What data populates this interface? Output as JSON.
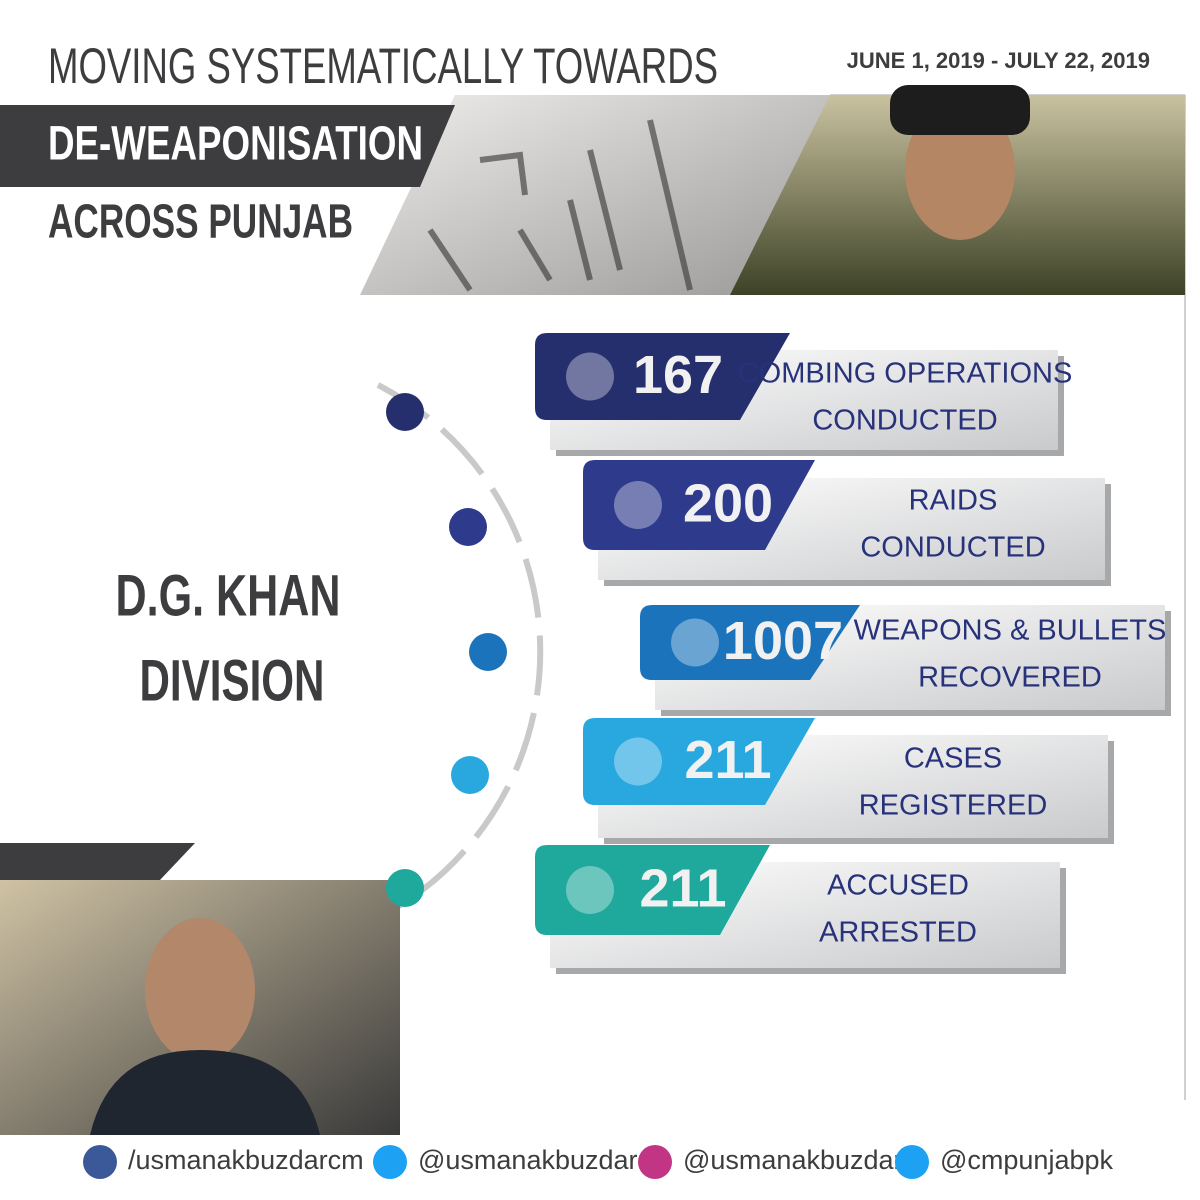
{
  "header": {
    "title_line_1": "MOVING SYSTEMATICALLY TOWARDS",
    "title_line_2": "DE-WEAPONISATION",
    "title_line_3": "ACROSS PUNJAB",
    "date_range": "JUNE 1, 2019 - JULY 22, 2019"
  },
  "division": {
    "line_1": "D.G. KHAN",
    "line_2": "DIVISION"
  },
  "stats": [
    {
      "value": 167,
      "label": [
        "COMBING OPERATIONS",
        "CONDUCTED"
      ]
    },
    {
      "value": 200,
      "label": [
        "RAIDS",
        "CONDUCTED"
      ]
    },
    {
      "value": 1007,
      "label": [
        "WEAPONS & BULLETS",
        "RECOVERED"
      ]
    },
    {
      "value": 211,
      "label": [
        "CASES",
        "REGISTERED"
      ]
    },
    {
      "value": 211,
      "label": [
        "ACCUSED",
        "ARRESTED"
      ]
    }
  ],
  "footer": {
    "handles": [
      "/usmanakbuzdarcm",
      "@usmanakbuzdar",
      "@usmanakbuzdar",
      "@cmpunjabpk"
    ]
  }
}
